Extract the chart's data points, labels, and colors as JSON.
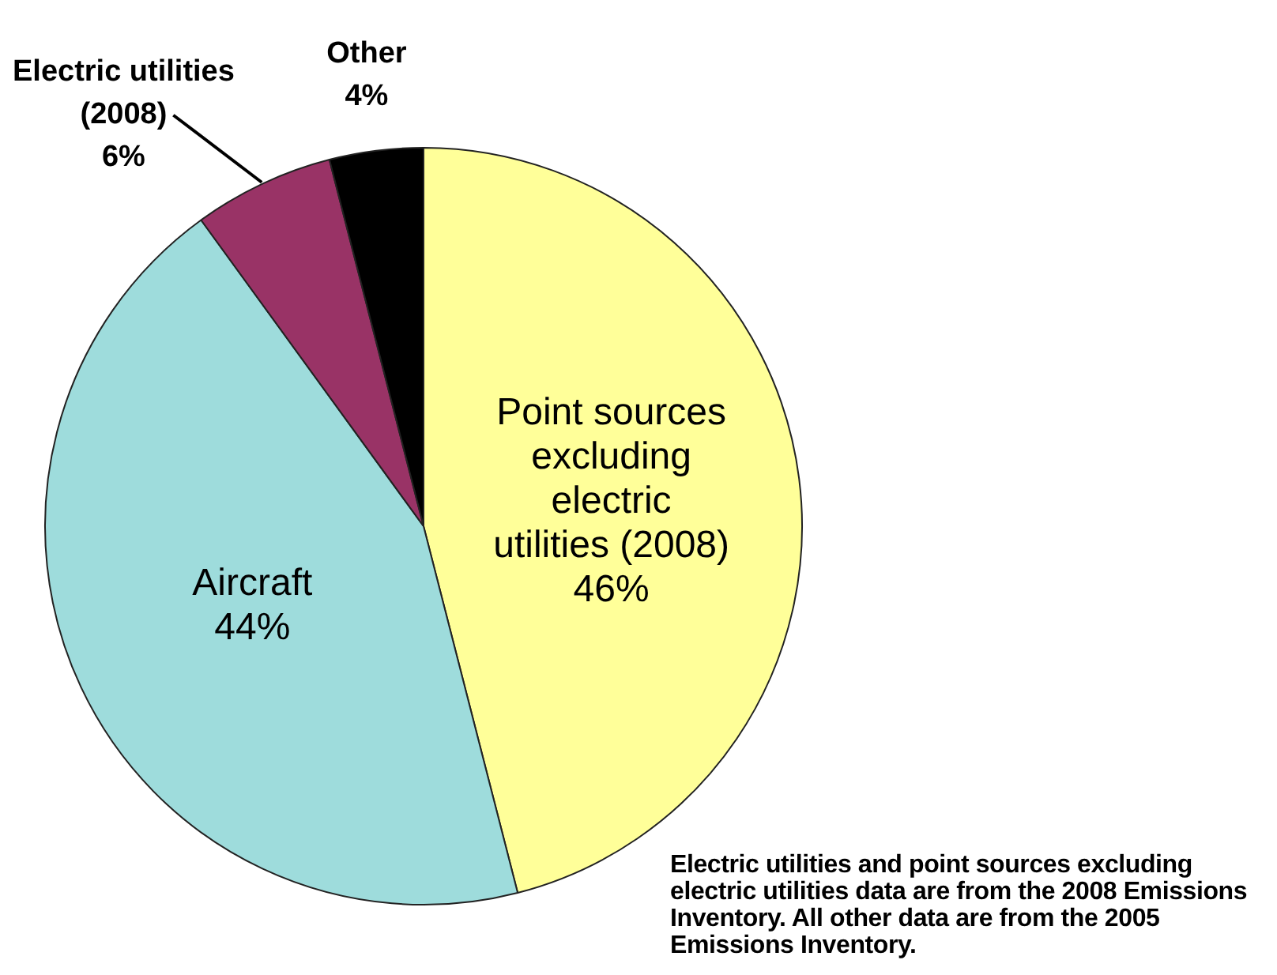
{
  "chart_data": {
    "type": "pie",
    "categories": [
      "Point sources excluding electric utilities (2008)",
      "Aircraft",
      "Electric utilities (2008)",
      "Other"
    ],
    "values": [
      46,
      44,
      6,
      4
    ],
    "colors": [
      "#ffff99",
      "#9edcdc",
      "#993366",
      "#000000"
    ],
    "value_labels": [
      "46%",
      "44%",
      "6%",
      "4%"
    ],
    "legend": false,
    "annotations": [
      "Electric utilities and point sources excluding electric utilities data are from the 2008 Emissions Inventory. All other data are from the 2005 Emissions Inventory."
    ]
  }
}
